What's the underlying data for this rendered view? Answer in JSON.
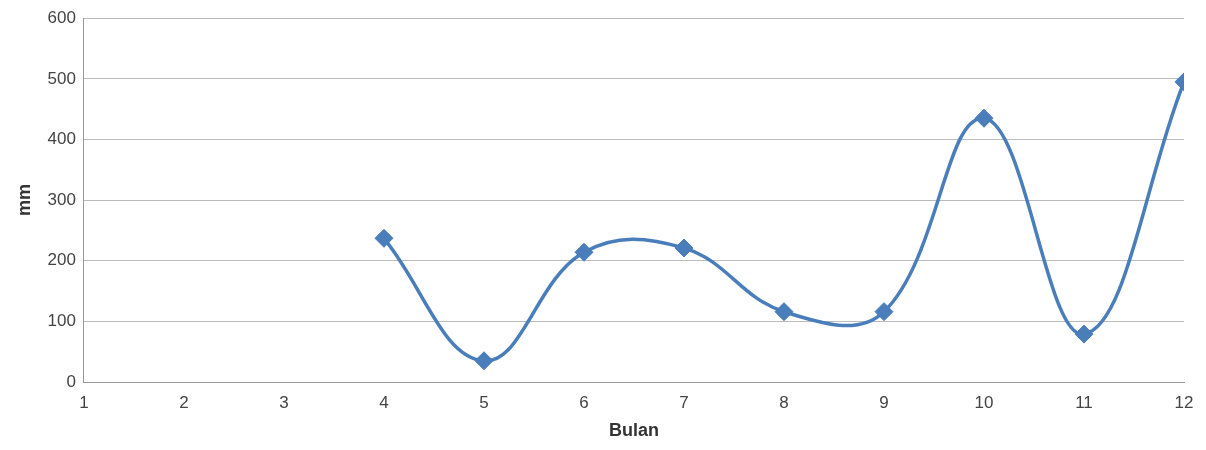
{
  "chart_data": {
    "type": "line",
    "xlabel": "Bulan",
    "ylabel": "mm",
    "x": [
      4,
      5,
      6,
      7,
      8,
      9,
      10,
      11,
      12
    ],
    "series": [
      {
        "color": "#4a7ebb",
        "values": [
          237,
          35,
          214,
          221,
          116,
          116,
          435,
          79,
          495
        ]
      }
    ],
    "xlim": [
      1,
      12
    ],
    "xticks": [
      1,
      2,
      3,
      4,
      5,
      6,
      7,
      8,
      9,
      10,
      11,
      12
    ],
    "ylim": [
      0,
      600
    ],
    "yticks": [
      0,
      100,
      200,
      300,
      400,
      500,
      600
    ],
    "grid": "y",
    "legend": false,
    "marker": "diamond",
    "line_style": "solid"
  }
}
